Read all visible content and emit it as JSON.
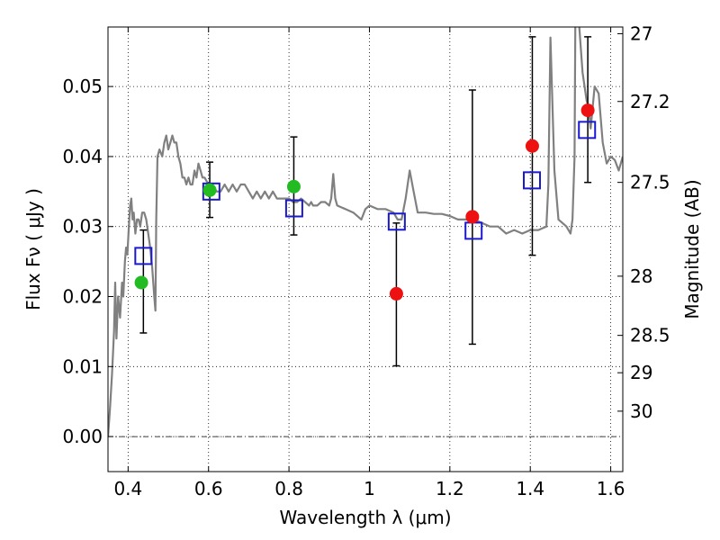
{
  "chart_data": {
    "type": "scatter",
    "xlabel": "Wavelength  λ (μm)",
    "ylabel": "Flux  Fν  ( μJy )",
    "y2label": "Magnitude (AB)",
    "xlim": [
      0.35,
      1.63
    ],
    "ylim": [
      -0.005,
      0.0585
    ],
    "grid": true,
    "x_ticks": [
      {
        "value": 0.4,
        "label": "0.4"
      },
      {
        "value": 0.6,
        "label": "0.6"
      },
      {
        "value": 0.8,
        "label": "0.8"
      },
      {
        "value": 1.0,
        "label": "1"
      },
      {
        "value": 1.2,
        "label": "1.2"
      },
      {
        "value": 1.4,
        "label": "1.4"
      },
      {
        "value": 1.6,
        "label": "1.6"
      }
    ],
    "y_ticks": [
      {
        "value": 0.0,
        "label": "0.00"
      },
      {
        "value": 0.01,
        "label": "0.01"
      },
      {
        "value": 0.02,
        "label": "0.02"
      },
      {
        "value": 0.03,
        "label": "0.03"
      },
      {
        "value": 0.04,
        "label": "0.04"
      },
      {
        "value": 0.05,
        "label": "0.05"
      }
    ],
    "mag_ticks": [
      {
        "mag": 27,
        "label": "27"
      },
      {
        "mag": 27.2,
        "label": "27.2"
      },
      {
        "mag": 27.5,
        "label": "27.5"
      },
      {
        "mag": 28,
        "label": "28"
      },
      {
        "mag": 28.5,
        "label": "28.5"
      },
      {
        "mag": 29,
        "label": "29"
      },
      {
        "mag": 30,
        "label": "30"
      }
    ],
    "colors": {
      "template": "#808080",
      "observed_green": "#22bb22",
      "observed_red": "#ee1111",
      "model": "#1a1acc",
      "errorbar": "#000000",
      "zero_line": "#000000"
    },
    "series": [
      {
        "type": "line",
        "points": [
          [
            0.35,
            0.0
          ],
          [
            0.355,
            0.004
          ],
          [
            0.36,
            0.009
          ],
          [
            0.365,
            0.015
          ],
          [
            0.368,
            0.022
          ],
          [
            0.371,
            0.014
          ],
          [
            0.375,
            0.02
          ],
          [
            0.38,
            0.017
          ],
          [
            0.385,
            0.022
          ],
          [
            0.388,
            0.02
          ],
          [
            0.392,
            0.025
          ],
          [
            0.395,
            0.027
          ],
          [
            0.398,
            0.026
          ],
          [
            0.402,
            0.03
          ],
          [
            0.405,
            0.033
          ],
          [
            0.408,
            0.034
          ],
          [
            0.411,
            0.031
          ],
          [
            0.414,
            0.032
          ],
          [
            0.418,
            0.029
          ],
          [
            0.422,
            0.031
          ],
          [
            0.426,
            0.031
          ],
          [
            0.43,
            0.03
          ],
          [
            0.435,
            0.032
          ],
          [
            0.44,
            0.032
          ],
          [
            0.445,
            0.031
          ],
          [
            0.45,
            0.029
          ],
          [
            0.455,
            0.027
          ],
          [
            0.46,
            0.024
          ],
          [
            0.465,
            0.02
          ],
          [
            0.468,
            0.018
          ],
          [
            0.47,
            0.031
          ],
          [
            0.473,
            0.04
          ],
          [
            0.478,
            0.041
          ],
          [
            0.485,
            0.04
          ],
          [
            0.49,
            0.042
          ],
          [
            0.495,
            0.043
          ],
          [
            0.5,
            0.041
          ],
          [
            0.505,
            0.042
          ],
          [
            0.51,
            0.043
          ],
          [
            0.515,
            0.042
          ],
          [
            0.52,
            0.042
          ],
          [
            0.525,
            0.04
          ],
          [
            0.53,
            0.039
          ],
          [
            0.535,
            0.037
          ],
          [
            0.54,
            0.037
          ],
          [
            0.545,
            0.036
          ],
          [
            0.55,
            0.037
          ],
          [
            0.555,
            0.036
          ],
          [
            0.56,
            0.036
          ],
          [
            0.565,
            0.038
          ],
          [
            0.57,
            0.037
          ],
          [
            0.575,
            0.039
          ],
          [
            0.58,
            0.038
          ],
          [
            0.585,
            0.037
          ],
          [
            0.59,
            0.037
          ],
          [
            0.6,
            0.036
          ],
          [
            0.61,
            0.036
          ],
          [
            0.62,
            0.035
          ],
          [
            0.63,
            0.035
          ],
          [
            0.64,
            0.036
          ],
          [
            0.65,
            0.035
          ],
          [
            0.66,
            0.036
          ],
          [
            0.67,
            0.035
          ],
          [
            0.68,
            0.036
          ],
          [
            0.69,
            0.036
          ],
          [
            0.7,
            0.035
          ],
          [
            0.71,
            0.034
          ],
          [
            0.72,
            0.035
          ],
          [
            0.73,
            0.034
          ],
          [
            0.74,
            0.035
          ],
          [
            0.75,
            0.034
          ],
          [
            0.76,
            0.035
          ],
          [
            0.77,
            0.034
          ],
          [
            0.78,
            0.034
          ],
          [
            0.79,
            0.034
          ],
          [
            0.8,
            0.034
          ],
          [
            0.81,
            0.0335
          ],
          [
            0.82,
            0.0335
          ],
          [
            0.83,
            0.034
          ],
          [
            0.84,
            0.0335
          ],
          [
            0.85,
            0.033
          ],
          [
            0.855,
            0.0335
          ],
          [
            0.86,
            0.033
          ],
          [
            0.87,
            0.033
          ],
          [
            0.88,
            0.0335
          ],
          [
            0.89,
            0.0335
          ],
          [
            0.9,
            0.033
          ],
          [
            0.905,
            0.034
          ],
          [
            0.91,
            0.0375
          ],
          [
            0.915,
            0.034
          ],
          [
            0.92,
            0.033
          ],
          [
            0.94,
            0.0325
          ],
          [
            0.96,
            0.032
          ],
          [
            0.98,
            0.031
          ],
          [
            0.99,
            0.0325
          ],
          [
            1.0,
            0.033
          ],
          [
            1.02,
            0.0325
          ],
          [
            1.04,
            0.0325
          ],
          [
            1.06,
            0.032
          ],
          [
            1.07,
            0.031
          ],
          [
            1.08,
            0.031
          ],
          [
            1.09,
            0.034
          ],
          [
            1.1,
            0.038
          ],
          [
            1.11,
            0.035
          ],
          [
            1.12,
            0.032
          ],
          [
            1.14,
            0.032
          ],
          [
            1.16,
            0.0318
          ],
          [
            1.18,
            0.0318
          ],
          [
            1.2,
            0.0315
          ],
          [
            1.22,
            0.031
          ],
          [
            1.24,
            0.031
          ],
          [
            1.26,
            0.031
          ],
          [
            1.28,
            0.0305
          ],
          [
            1.3,
            0.03
          ],
          [
            1.32,
            0.03
          ],
          [
            1.34,
            0.029
          ],
          [
            1.36,
            0.0295
          ],
          [
            1.38,
            0.029
          ],
          [
            1.4,
            0.0295
          ],
          [
            1.42,
            0.0295
          ],
          [
            1.44,
            0.03
          ],
          [
            1.445,
            0.036
          ],
          [
            1.45,
            0.057
          ],
          [
            1.46,
            0.038
          ],
          [
            1.47,
            0.031
          ],
          [
            1.48,
            0.0305
          ],
          [
            1.49,
            0.03
          ],
          [
            1.5,
            0.029
          ],
          [
            1.505,
            0.031
          ],
          [
            1.51,
            0.04
          ],
          [
            1.512,
            0.06
          ],
          [
            1.52,
            0.06
          ],
          [
            1.53,
            0.052
          ],
          [
            1.54,
            0.048
          ],
          [
            1.545,
            0.047
          ],
          [
            1.55,
            0.044
          ],
          [
            1.56,
            0.05
          ],
          [
            1.57,
            0.049
          ],
          [
            1.58,
            0.042
          ],
          [
            1.59,
            0.039
          ],
          [
            1.6,
            0.04
          ],
          [
            1.61,
            0.0395
          ],
          [
            1.62,
            0.038
          ],
          [
            1.63,
            0.04
          ]
        ]
      },
      {
        "type": "scatter",
        "points": [
          {
            "x": 0.433,
            "y": 0.022
          },
          {
            "x": 0.603,
            "y": 0.0352
          },
          {
            "x": 0.812,
            "y": 0.0357
          }
        ]
      },
      {
        "type": "scatter",
        "points": [
          {
            "x": 1.067,
            "y": 0.0204
          },
          {
            "x": 1.256,
            "y": 0.0314
          },
          {
            "x": 1.405,
            "y": 0.0415
          },
          {
            "x": 1.543,
            "y": 0.0466
          }
        ]
      },
      {
        "type": "scatter",
        "points": [
          {
            "x": 0.438,
            "y": 0.0258
          },
          {
            "x": 0.607,
            "y": 0.035
          },
          {
            "x": 0.813,
            "y": 0.0326
          },
          {
            "x": 1.068,
            "y": 0.0307
          },
          {
            "x": 1.259,
            "y": 0.0294
          },
          {
            "x": 1.404,
            "y": 0.0366
          },
          {
            "x": 1.541,
            "y": 0.0438
          }
        ]
      },
      {
        "type": "errorbar",
        "points": [
          {
            "x": 0.438,
            "low": 0.0148,
            "high": 0.0295
          },
          {
            "x": 0.603,
            "low": 0.0313,
            "high": 0.0392
          },
          {
            "x": 0.812,
            "low": 0.0288,
            "high": 0.0428
          },
          {
            "x": 1.067,
            "low": 0.0101,
            "high": 0.0305
          },
          {
            "x": 1.256,
            "low": 0.0132,
            "high": 0.0495
          },
          {
            "x": 1.405,
            "low": 0.0259,
            "high": 0.0571
          },
          {
            "x": 1.543,
            "low": 0.0363,
            "high": 0.0571
          }
        ]
      }
    ]
  }
}
